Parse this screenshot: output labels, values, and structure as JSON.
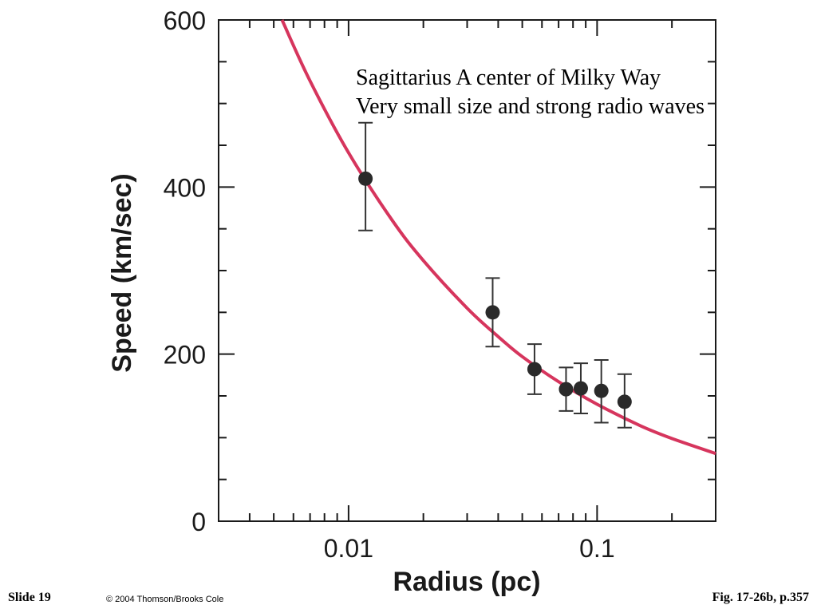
{
  "chart_data": {
    "type": "scatter",
    "xlabel": "Radius (pc)",
    "ylabel": "Speed (km/sec)",
    "x_scale": "log",
    "xlim": [
      0.003,
      0.3
    ],
    "ylim": [
      0,
      600
    ],
    "x_tick_labels": [
      "0.01",
      "0.1"
    ],
    "x_ticks": [
      0.01,
      0.1
    ],
    "y_tick_labels": [
      "0",
      "200",
      "400",
      "600"
    ],
    "y_ticks": [
      0,
      200,
      400,
      600
    ],
    "grid": false,
    "series": [
      {
        "type": "scatter",
        "color": "#2a2a2a",
        "points": [
          {
            "x": 0.0117,
            "y": 410,
            "err_low": 348,
            "err_high": 477
          },
          {
            "x": 0.038,
            "y": 250,
            "err_low": 209,
            "err_high": 291
          },
          {
            "x": 0.056,
            "y": 182,
            "err_low": 152,
            "err_high": 212
          },
          {
            "x": 0.075,
            "y": 158,
            "err_low": 132,
            "err_high": 184
          },
          {
            "x": 0.086,
            "y": 159,
            "err_low": 129,
            "err_high": 189
          },
          {
            "x": 0.104,
            "y": 156,
            "err_low": 118,
            "err_high": 193
          },
          {
            "x": 0.129,
            "y": 143,
            "err_low": 112,
            "err_high": 176
          }
        ]
      },
      {
        "type": "line",
        "color": "#d6355d",
        "x": [
          0.0054,
          0.007,
          0.01,
          0.015,
          0.02,
          0.03,
          0.04,
          0.05,
          0.07,
          0.1,
          0.15,
          0.2,
          0.3
        ],
        "y": [
          600,
          527,
          441,
          360,
          312,
          255,
          221,
          197,
          167,
          140,
          114,
          99,
          81
        ]
      }
    ]
  },
  "annotation": {
    "line1": "Sagittarius A center of Milky Way",
    "line2": "Very small size and strong radio waves"
  },
  "footer": {
    "slide": "Slide 19",
    "copyright": "© 2004 Thomson/Brooks Cole",
    "figure": "Fig. 17-26b, p.357"
  }
}
